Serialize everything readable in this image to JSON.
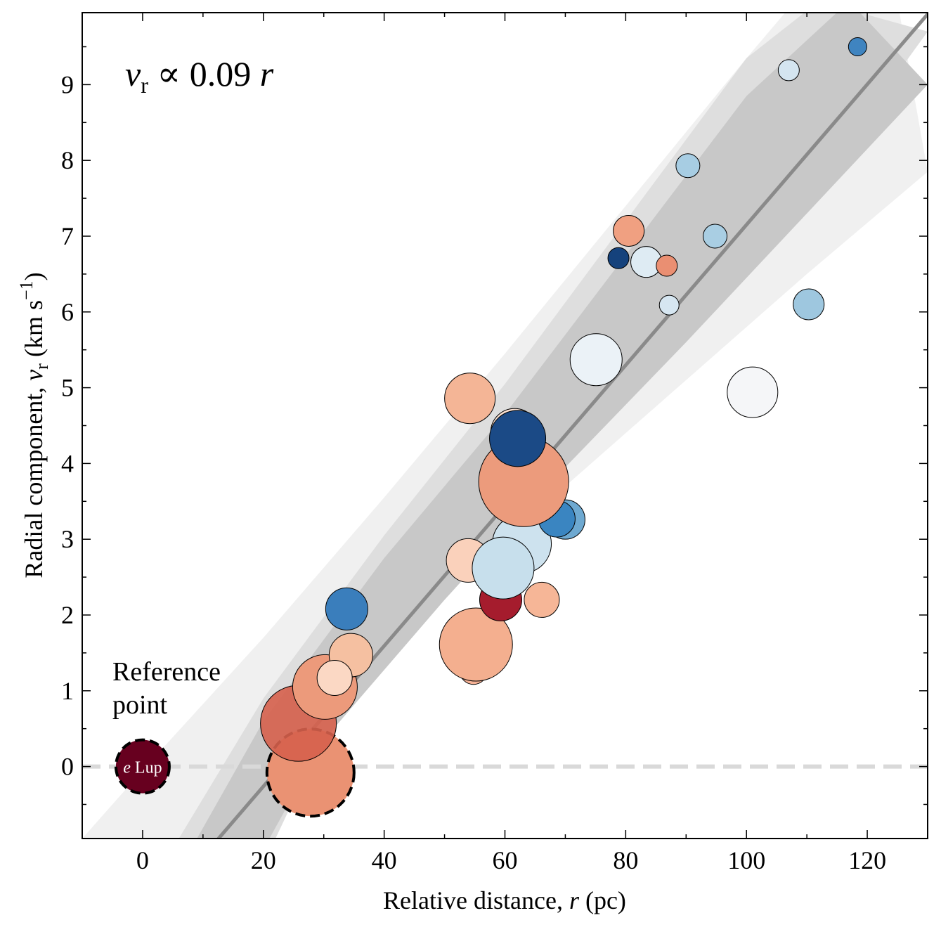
{
  "chart_data": {
    "type": "scatter",
    "xlabel": "Relative distance, r (pc)",
    "ylabel": "Radial component, v_r (km s^-1)",
    "xlabel_parts": {
      "pre": "Relative distance, ",
      "var": "r",
      "post": " (pc)"
    },
    "ylabel_parts": {
      "pre": "Radial component, ",
      "var": "v",
      "sub": "r",
      "post": " (km s",
      "sup": "−1",
      "close": ")"
    },
    "xlim": [
      -10,
      130
    ],
    "ylim": [
      -0.95,
      9.95
    ],
    "xticks": [
      0,
      20,
      40,
      60,
      80,
      100,
      120
    ],
    "yticks": [
      0,
      1,
      2,
      3,
      4,
      5,
      6,
      7,
      8,
      9
    ],
    "fit": {
      "slope": 0.09,
      "label_parts": {
        "var": "v",
        "sub": "r",
        "op": " ∝ 0.09 ",
        "var2": "r"
      },
      "line": {
        "x": [
          11.6,
          130
        ],
        "y": [
          -1.04,
          9.93
        ]
      },
      "bands": [
        {
          "level": "outer",
          "color": "#f0f0f0",
          "upper": [
            [
              -10,
              -0.95
            ],
            [
              0,
              -0.05
            ],
            [
              20,
              1.7
            ],
            [
              40,
              3.55
            ],
            [
              60,
              5.45
            ],
            [
              80,
              7.4
            ],
            [
              100,
              9.35
            ],
            [
              108,
              10.1
            ]
          ],
          "lower": [
            [
              125,
              10.1
            ],
            [
              130,
              7.85
            ],
            [
              110,
              6.5
            ],
            [
              90,
              5.1
            ],
            [
              70,
              3.7
            ],
            [
              50,
              2.3
            ],
            [
              30,
              0.75
            ],
            [
              20,
              -0.1
            ],
            [
              14,
              -0.95
            ]
          ]
        },
        {
          "level": "middle",
          "color": "#dedede",
          "upper": [
            [
              6,
              -0.95
            ],
            [
              20,
              0.9
            ],
            [
              40,
              3.05
            ],
            [
              60,
              5.05
            ],
            [
              80,
              7.2
            ],
            [
              100,
              9.35
            ],
            [
              112,
              10.1
            ]
          ],
          "lower": [
            [
              130,
              9.7
            ],
            [
              110,
              7.5
            ],
            [
              90,
              5.8
            ],
            [
              70,
              4.2
            ],
            [
              50,
              2.4
            ],
            [
              30,
              0.4
            ],
            [
              22,
              -0.95
            ]
          ]
        },
        {
          "level": "inner",
          "color": "#c8c8c8",
          "upper": [
            [
              9,
              -0.95
            ],
            [
              20,
              0.6
            ],
            [
              40,
              2.75
            ],
            [
              60,
              4.65
            ],
            [
              80,
              6.75
            ],
            [
              100,
              8.85
            ],
            [
              117,
              10.1
            ]
          ],
          "lower": [
            [
              130,
              9.0
            ],
            [
              110,
              7.3
            ],
            [
              90,
              5.6
            ],
            [
              70,
              3.95
            ],
            [
              50,
              2.2
            ],
            [
              30,
              0.35
            ],
            [
              21,
              -0.95
            ]
          ]
        }
      ]
    },
    "reference_line": {
      "y": 0,
      "style": "dashed",
      "color": "#d9d9d9"
    },
    "annotation": {
      "line1": "Reference",
      "line2": "point",
      "x": -5,
      "y": 1.4
    },
    "points": [
      {
        "x": 0,
        "y": 0,
        "size": 38,
        "color": "#67001f",
        "dashed": true,
        "label": "e Lup"
      },
      {
        "x": 27.8,
        "y": -0.08,
        "size": 62,
        "color": "#ea9273",
        "dashed": true
      },
      {
        "x": 25.8,
        "y": 0.57,
        "size": 54,
        "color": "#d6604d",
        "alpha": 0.9
      },
      {
        "x": 30.2,
        "y": 1.05,
        "size": 46,
        "color": "#ec9a7b"
      },
      {
        "x": 34.5,
        "y": 1.47,
        "size": 31,
        "color": "#f5c0a1"
      },
      {
        "x": 31.8,
        "y": 1.17,
        "size": 25,
        "color": "#fbd8c4"
      },
      {
        "x": 33.8,
        "y": 2.08,
        "size": 30,
        "color": "#3a7ebc"
      },
      {
        "x": 54.8,
        "y": 1.27,
        "size": 15,
        "color": "#b2182b"
      },
      {
        "x": 54.8,
        "y": 1.27,
        "size": 20,
        "color": "#f4a989",
        "alpha": 0.9
      },
      {
        "x": 55.2,
        "y": 1.61,
        "size": 52,
        "color": "#f4af8f"
      },
      {
        "x": 59.3,
        "y": 2.2,
        "size": 30,
        "color": "#a51c2d"
      },
      {
        "x": 53.9,
        "y": 2.72,
        "size": 31,
        "color": "#fad1bb"
      },
      {
        "x": 66.1,
        "y": 2.2,
        "size": 25,
        "color": "#f6b697"
      },
      {
        "x": 62.8,
        "y": 2.94,
        "size": 42,
        "color": "#cde2ee"
      },
      {
        "x": 59.7,
        "y": 2.62,
        "size": 44,
        "color": "#c7dfec"
      },
      {
        "x": 70,
        "y": 3.26,
        "size": 28,
        "color": "#6ea9d1"
      },
      {
        "x": 68.6,
        "y": 3.27,
        "size": 26,
        "color": "#3a85c1"
      },
      {
        "x": 63.1,
        "y": 3.76,
        "size": 64,
        "color": "#ec9b7c"
      },
      {
        "x": 61.6,
        "y": 4.41,
        "size": 34,
        "color": "#fbe2d4"
      },
      {
        "x": 62.1,
        "y": 4.33,
        "size": 40,
        "color": "#1b4a86"
      },
      {
        "x": 54.2,
        "y": 4.86,
        "size": 36,
        "color": "#f4b596"
      },
      {
        "x": 75.1,
        "y": 5.37,
        "size": 37,
        "color": "#ebf2f7"
      },
      {
        "x": 101,
        "y": 4.94,
        "size": 36,
        "color": "#f5f6f8"
      },
      {
        "x": 80.5,
        "y": 7.07,
        "size": 22,
        "color": "#f0a081"
      },
      {
        "x": 78.8,
        "y": 6.71,
        "size": 15,
        "color": "#15427c"
      },
      {
        "x": 83.4,
        "y": 6.66,
        "size": 22,
        "color": "#deebf3"
      },
      {
        "x": 86.8,
        "y": 6.61,
        "size": 15,
        "color": "#ea8f72"
      },
      {
        "x": 87.2,
        "y": 6.09,
        "size": 14,
        "color": "#d6e6f1"
      },
      {
        "x": 90.3,
        "y": 7.93,
        "size": 17,
        "color": "#a7cde3"
      },
      {
        "x": 94.8,
        "y": 7.0,
        "size": 17,
        "color": "#a9cee3"
      },
      {
        "x": 110.3,
        "y": 6.1,
        "size": 22,
        "color": "#9ec7df"
      },
      {
        "x": 107,
        "y": 9.19,
        "size": 15,
        "color": "#d4e5f0"
      },
      {
        "x": 118.4,
        "y": 9.5,
        "size": 13,
        "color": "#3f84c0"
      }
    ]
  }
}
